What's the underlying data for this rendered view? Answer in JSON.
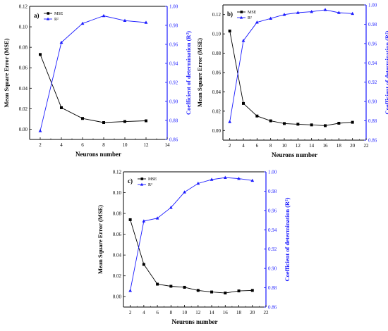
{
  "chart_data": [
    {
      "type": "line",
      "panel_label": "a)",
      "xlabel": "Neurons number",
      "ylabel": "Mean Square Error (MSE)",
      "ylabel_right": "Coefficient of determination (R²)",
      "xlim": [
        1,
        14
      ],
      "ylim": [
        -0.01,
        0.12
      ],
      "ylim_right": [
        0.86,
        1.0
      ],
      "xticks": [
        2,
        4,
        6,
        8,
        10,
        12,
        14
      ],
      "yticks": [
        0.0,
        0.02,
        0.04,
        0.06,
        0.08,
        0.1,
        0.12
      ],
      "yticks_right": [
        0.86,
        0.88,
        0.9,
        0.92,
        0.94,
        0.96,
        0.98,
        1.0
      ],
      "xtick_labels": [
        "2",
        "4",
        "6",
        "8",
        "10",
        "12",
        "14"
      ],
      "ytick_labels": [
        "0.00",
        "0.02",
        "0.04",
        "0.06",
        "0.08",
        "0.10",
        "0.12"
      ],
      "ytick_right_labels": [
        "0.86",
        "0.88",
        "0.90",
        "0.92",
        "0.94",
        "0.96",
        "0.98",
        "1.00"
      ],
      "legend": "top-left",
      "series": [
        {
          "name": "MSE",
          "axis": "left",
          "color": "#000000",
          "marker": "square",
          "x": [
            2,
            4,
            6,
            8,
            10,
            12
          ],
          "values": [
            0.073,
            0.021,
            0.0105,
            0.0065,
            0.0075,
            0.0082
          ]
        },
        {
          "name": "R²",
          "axis": "right",
          "color": "#1a1aff",
          "marker": "triangle",
          "x": [
            2,
            4,
            6,
            8,
            10,
            12
          ],
          "values": [
            0.869,
            0.962,
            0.982,
            0.99,
            0.985,
            0.983
          ]
        }
      ]
    },
    {
      "type": "line",
      "panel_label": "b)",
      "xlabel": "Neurons number",
      "ylabel": "Mean Square Error (MSE)",
      "ylabel_right": "Coefficient of determination (R²)",
      "xlim": [
        1,
        22
      ],
      "ylim": [
        -0.01,
        0.13
      ],
      "ylim_right": [
        0.86,
        1.0
      ],
      "xticks": [
        2,
        4,
        6,
        8,
        10,
        12,
        14,
        16,
        18,
        20,
        22
      ],
      "yticks": [
        0.0,
        0.02,
        0.04,
        0.06,
        0.08,
        0.1,
        0.12
      ],
      "yticks_right": [
        0.86,
        0.88,
        0.9,
        0.92,
        0.94,
        0.96,
        0.98,
        1.0
      ],
      "xtick_labels": [
        "2",
        "4",
        "6",
        "8",
        "10",
        "12",
        "14",
        "16",
        "18",
        "20",
        "22"
      ],
      "ytick_labels": [
        "0.00",
        "0.02",
        "0.04",
        "0.06",
        "0.08",
        "0.10",
        "0.12"
      ],
      "ytick_right_labels": [
        "0.86",
        "0.88",
        "0.90",
        "0.92",
        "0.94",
        "0.96",
        "0.98",
        "1.00"
      ],
      "legend": "top-left",
      "series": [
        {
          "name": "MSE",
          "axis": "left",
          "color": "#000000",
          "marker": "square",
          "x": [
            2,
            4,
            6,
            8,
            10,
            12,
            14,
            16,
            18,
            20
          ],
          "values": [
            0.103,
            0.028,
            0.015,
            0.01,
            0.0072,
            0.0065,
            0.0058,
            0.005,
            0.0075,
            0.0085
          ]
        },
        {
          "name": "R²",
          "axis": "right",
          "color": "#1a1aff",
          "marker": "triangle",
          "x": [
            2,
            4,
            6,
            8,
            10,
            12,
            14,
            16,
            18,
            20
          ],
          "values": [
            0.879,
            0.963,
            0.982,
            0.986,
            0.99,
            0.992,
            0.993,
            0.995,
            0.992,
            0.991
          ]
        }
      ]
    },
    {
      "type": "line",
      "panel_label": "c)",
      "xlabel": "Neurons number",
      "ylabel": "Mean Square Error (MSE)",
      "ylabel_right": "Coefficient of determination (R²)",
      "xlim": [
        1,
        22
      ],
      "ylim": [
        -0.01,
        0.12
      ],
      "ylim_right": [
        0.86,
        1.0
      ],
      "xticks": [
        2,
        4,
        6,
        8,
        10,
        12,
        14,
        16,
        18,
        20,
        22
      ],
      "yticks": [
        0.0,
        0.02,
        0.04,
        0.06,
        0.08,
        0.1,
        0.12
      ],
      "yticks_right": [
        0.86,
        0.88,
        0.9,
        0.92,
        0.94,
        0.96,
        0.98,
        1.0
      ],
      "xtick_labels": [
        "2",
        "4",
        "6",
        "8",
        "10",
        "12",
        "14",
        "16",
        "18",
        "20",
        "22"
      ],
      "ytick_labels": [
        "0.00",
        "0.02",
        "0.04",
        "0.06",
        "0.08",
        "0.10",
        "0.12"
      ],
      "ytick_right_labels": [
        "0.86",
        "0.88",
        "0.90",
        "0.92",
        "0.94",
        "0.96",
        "0.98",
        "1.00"
      ],
      "legend": "top-left",
      "series": [
        {
          "name": "MSE",
          "axis": "left",
          "color": "#000000",
          "marker": "square",
          "x": [
            2,
            4,
            6,
            8,
            10,
            12,
            14,
            16,
            18,
            20
          ],
          "values": [
            0.074,
            0.031,
            0.012,
            0.01,
            0.009,
            0.006,
            0.0045,
            0.0035,
            0.0055,
            0.006
          ]
        },
        {
          "name": "R²",
          "axis": "right",
          "color": "#1a1aff",
          "marker": "triangle",
          "x": [
            2,
            4,
            6,
            8,
            10,
            12,
            14,
            16,
            18,
            20
          ],
          "values": [
            0.877,
            0.949,
            0.952,
            0.963,
            0.979,
            0.988,
            0.992,
            0.994,
            0.993,
            0.991
          ]
        }
      ]
    }
  ]
}
